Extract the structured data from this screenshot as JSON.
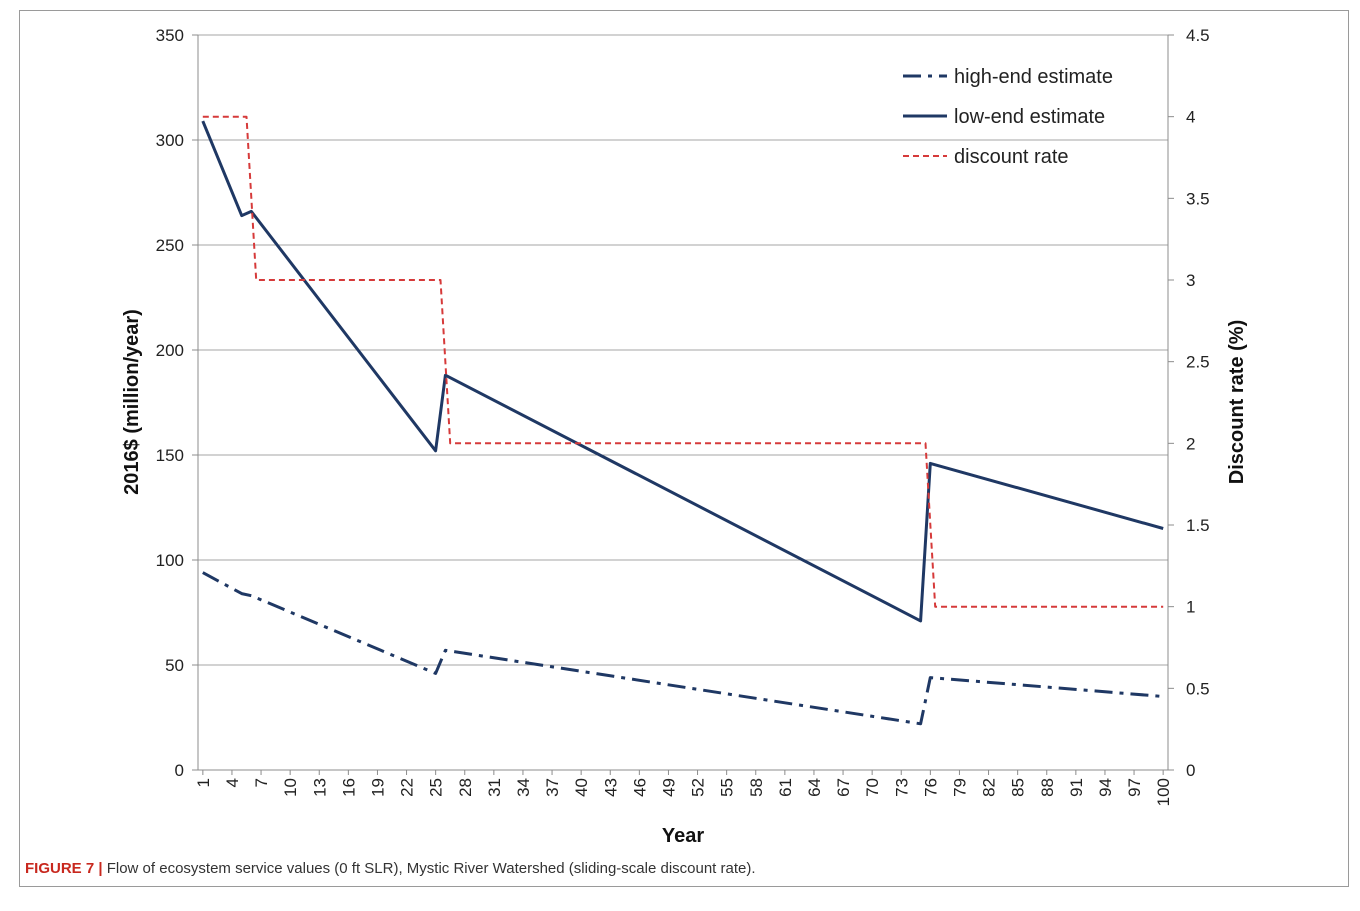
{
  "caption": {
    "label": "FIGURE 7 |",
    "text": " Flow of ecosystem service values (0 ft SLR), Mystic River Watershed (sliding-scale discount rate)."
  },
  "chart_data": {
    "type": "line",
    "x_label": "Year",
    "y_label": "2016$ (million/year)",
    "y2_label": "Discount rate (%)",
    "x_range": [
      1,
      100
    ],
    "ylim": [
      0,
      350
    ],
    "y2lim": [
      0,
      4.5
    ],
    "y_ticks": [
      0,
      50,
      100,
      150,
      200,
      250,
      300,
      350
    ],
    "y2_ticks": [
      0,
      0.5,
      1,
      1.5,
      2,
      2.5,
      3,
      3.5,
      4,
      4.5
    ],
    "x_ticks": [
      1,
      4,
      7,
      10,
      13,
      16,
      19,
      22,
      25,
      28,
      31,
      34,
      37,
      40,
      43,
      46,
      49,
      52,
      55,
      58,
      61,
      64,
      67,
      70,
      73,
      76,
      79,
      82,
      85,
      88,
      91,
      94,
      97,
      100
    ],
    "grid": "horizontal",
    "legend_position": "top-right",
    "series": [
      {
        "name": "high-end estimate",
        "axis": "left",
        "style": "dash-dot",
        "color": "#1f3864",
        "points": [
          [
            1,
            94
          ],
          [
            5,
            84
          ],
          [
            6,
            83
          ],
          [
            25,
            46
          ],
          [
            26,
            57
          ],
          [
            75,
            22
          ],
          [
            76,
            44
          ],
          [
            100,
            35
          ]
        ]
      },
      {
        "name": "low-end estimate",
        "axis": "left",
        "style": "solid",
        "color": "#1f3864",
        "points": [
          [
            1,
            309
          ],
          [
            5,
            264
          ],
          [
            6,
            266
          ],
          [
            25,
            152
          ],
          [
            26,
            188
          ],
          [
            75,
            71
          ],
          [
            76,
            146
          ],
          [
            100,
            115
          ]
        ]
      },
      {
        "name": "discount rate",
        "axis": "right",
        "style": "dashed",
        "color": "#d63a3a",
        "points": [
          [
            1,
            4
          ],
          [
            5.5,
            4
          ],
          [
            6.5,
            3
          ],
          [
            25.5,
            3
          ],
          [
            26.5,
            2
          ],
          [
            75.5,
            2
          ],
          [
            76.5,
            1
          ],
          [
            100,
            1
          ]
        ]
      }
    ]
  }
}
